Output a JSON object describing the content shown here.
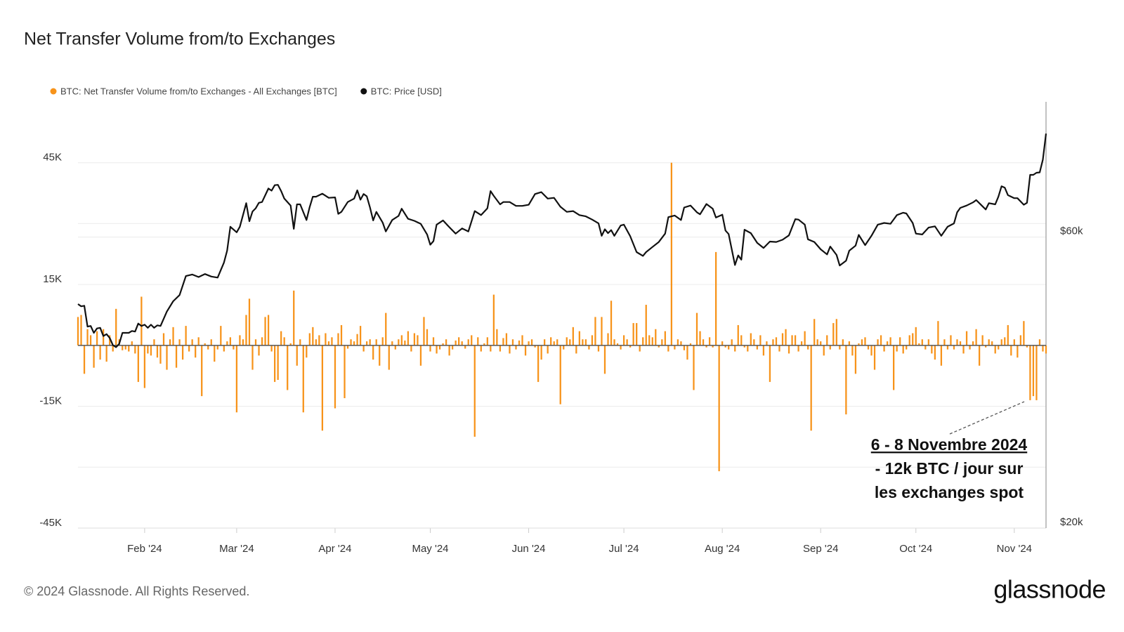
{
  "chart_data": {
    "type": "bar_line",
    "title": "Net Transfer Volume from/to Exchanges",
    "footer": "© 2024 Glassnode. All Rights Reserved.",
    "logo": "glassnode",
    "annotation": [
      "6 - 8 Novembre 2024",
      "- 12k BTC / jour sur",
      "les exchanges spot"
    ],
    "xlim": [
      0,
      305
    ],
    "xticks": [
      {
        "value": 21,
        "label": "Feb '24"
      },
      {
        "value": 50,
        "label": "Mar '24"
      },
      {
        "value": 81,
        "label": "Apr '24"
      },
      {
        "value": 111,
        "label": "May '24"
      },
      {
        "value": 142,
        "label": "Jun '24"
      },
      {
        "value": 172,
        "label": "Jul '24"
      },
      {
        "value": 203,
        "label": "Aug '24"
      },
      {
        "value": 234,
        "label": "Sep '24"
      },
      {
        "value": 264,
        "label": "Oct '24"
      },
      {
        "value": 295,
        "label": "Nov '24"
      }
    ],
    "ylim": [
      -45000,
      60000
    ],
    "yticks": [
      {
        "value": 45000,
        "label": "45K"
      },
      {
        "value": 15000,
        "label": "15K"
      },
      {
        "value": -15000,
        "label": "-15K"
      },
      {
        "value": -45000,
        "label": "-45K"
      }
    ],
    "minor_yticks": [
      30000,
      0,
      -30000
    ],
    "y2lim": [
      20000,
      100000
    ],
    "y2ticks": [
      {
        "value": 60000,
        "label": "$60k"
      },
      {
        "value": 20000,
        "label": "$20k"
      }
    ],
    "y2_log": true,
    "grid": true,
    "legend": "top-left",
    "x": [
      0,
      1,
      2,
      3,
      4,
      5,
      6,
      7,
      8,
      9,
      10,
      11,
      12,
      13,
      14,
      15,
      16,
      17,
      18,
      19,
      20,
      21,
      22,
      23,
      24,
      25,
      26,
      27,
      28,
      29,
      30,
      31,
      32,
      33,
      34,
      35,
      36,
      37,
      38,
      39,
      40,
      41,
      42,
      43,
      44,
      45,
      46,
      47,
      48,
      49,
      50,
      51,
      52,
      53,
      54,
      55,
      56,
      57,
      58,
      59,
      60,
      61,
      62,
      63,
      64,
      65,
      66,
      67,
      68,
      69,
      70,
      71,
      72,
      73,
      74,
      75,
      76,
      77,
      78,
      79,
      80,
      81,
      82,
      83,
      84,
      85,
      86,
      87,
      88,
      89,
      90,
      91,
      92,
      93,
      94,
      95,
      96,
      97,
      98,
      99,
      100,
      101,
      102,
      103,
      104,
      105,
      106,
      107,
      108,
      109,
      110,
      111,
      112,
      113,
      114,
      115,
      116,
      117,
      118,
      119,
      120,
      121,
      122,
      123,
      124,
      125,
      126,
      127,
      128,
      129,
      130,
      131,
      132,
      133,
      134,
      135,
      136,
      137,
      138,
      139,
      140,
      141,
      142,
      143,
      144,
      145,
      146,
      147,
      148,
      149,
      150,
      151,
      152,
      153,
      154,
      155,
      156,
      157,
      158,
      159,
      160,
      161,
      162,
      163,
      164,
      165,
      166,
      167,
      168,
      169,
      170,
      171,
      172,
      173,
      174,
      175,
      176,
      177,
      178,
      179,
      180,
      181,
      182,
      183,
      184,
      185,
      186,
      187,
      188,
      189,
      190,
      191,
      192,
      193,
      194,
      195,
      196,
      197,
      198,
      199,
      200,
      201,
      202,
      203,
      204,
      205,
      206,
      207,
      208,
      209,
      210,
      211,
      212,
      213,
      214,
      215,
      216,
      217,
      218,
      219,
      220,
      221,
      222,
      223,
      224,
      225,
      226,
      227,
      228,
      229,
      230,
      231,
      232,
      233,
      234,
      235,
      236,
      237,
      238,
      239,
      240,
      241,
      242,
      243,
      244,
      245,
      246,
      247,
      248,
      249,
      250,
      251,
      252,
      253,
      254,
      255,
      256,
      257,
      258,
      259,
      260,
      261,
      262,
      263,
      264,
      265,
      266,
      267,
      268,
      269,
      270,
      271,
      272,
      273,
      274,
      275,
      276,
      277,
      278,
      279,
      280,
      281,
      282,
      283,
      284,
      285,
      286,
      287,
      288,
      289,
      290,
      291,
      292,
      293,
      294,
      295,
      296,
      297,
      298,
      299,
      300,
      301,
      302,
      303,
      304,
      305
    ],
    "series": [
      {
        "name": "BTC: Net Transfer Volume from/to Exchanges - All Exchanges [BTC]",
        "color": "#f7931a",
        "type": "bar",
        "values": [
          7000,
          7500,
          -7000,
          4000,
          2500,
          -5500,
          3500,
          -3500,
          4000,
          -4000,
          2500,
          -1500,
          9000,
          1500,
          -1200,
          -1000,
          -1500,
          1000,
          -2000,
          -9000,
          12000,
          -10500,
          -2000,
          -2500,
          1500,
          -3000,
          -4500,
          3000,
          -6000,
          1500,
          4500,
          -5500,
          1500,
          -3500,
          4800,
          -1500,
          1500,
          -3000,
          2000,
          -12500,
          500,
          -1000,
          1500,
          -4000,
          -1000,
          4800,
          -1500,
          1000,
          2000,
          -1000,
          -16500,
          2500,
          1500,
          7500,
          11500,
          -6000,
          1500,
          -2500,
          2000,
          7000,
          7500,
          -1500,
          -9000,
          -8500,
          3500,
          2000,
          -11000,
          500,
          13500,
          -5000,
          1500,
          -16500,
          -3000,
          3000,
          4500,
          1500,
          2500,
          -21000,
          3000,
          1000,
          2000,
          -15500,
          3000,
          5000,
          -13000,
          -800,
          1500,
          1000,
          2800,
          4800,
          -1500,
          1000,
          1500,
          -3500,
          1500,
          -5000,
          2000,
          8000,
          -6000,
          1000,
          -1000,
          1500,
          2500,
          1200,
          3500,
          -1500,
          3000,
          2500,
          -5000,
          7000,
          4000,
          -1500,
          2000,
          -2000,
          -1000,
          500,
          1500,
          -2500,
          -1000,
          1200,
          2000,
          1000,
          -800,
          1500,
          2500,
          -22500,
          2000,
          -1500,
          500,
          2000,
          -1500,
          12500,
          4000,
          -1500,
          1800,
          3000,
          -2000,
          1500,
          -1000,
          1200,
          2500,
          -2500,
          1000,
          1500,
          -500,
          -9000,
          -3500,
          1500,
          -2000,
          2000,
          1000,
          1500,
          -14500,
          -1000,
          2000,
          1500,
          4500,
          -2000,
          3500,
          1500,
          1500,
          -1000,
          2500,
          7000,
          -1500,
          7000,
          -7000,
          3000,
          11000,
          1500,
          500,
          -1000,
          2500,
          1500,
          -500,
          5500,
          5500,
          -1500,
          2000,
          10000,
          2500,
          2000,
          4000,
          -500,
          1500,
          3500,
          -1500,
          45000,
          -1000,
          1500,
          1000,
          -1200,
          -3500,
          500,
          -11000,
          8000,
          3500,
          1500,
          -500,
          2000,
          -500,
          23000,
          -31000,
          1000,
          -500,
          -1000,
          1500,
          -1500,
          5000,
          2500,
          -500,
          -1500,
          3000,
          1500,
          -1000,
          2500,
          -2500,
          1000,
          -9000,
          1500,
          2000,
          -1500,
          3000,
          4000,
          -2000,
          2500,
          2500,
          -1500,
          1000,
          3500,
          -1000,
          -21000,
          6500,
          1500,
          1000,
          -2500,
          2500,
          -1000,
          5500,
          6500,
          -1000,
          1500,
          -17000,
          1000,
          -2500,
          -7000,
          500,
          1500,
          2000,
          -1000,
          -2500,
          -6000,
          1500,
          2500,
          -1500,
          1000,
          2000,
          -11000,
          -1500,
          2000,
          -2000,
          -1000,
          2500,
          3000,
          4500,
          500,
          1500,
          -1000,
          1500,
          -2000,
          -3500,
          6000,
          -5000,
          1500,
          -1000,
          2500,
          -1000,
          1500,
          1000,
          -2000,
          3500,
          -1000,
          1000,
          4000,
          -5000,
          2500,
          -500,
          1500,
          1000,
          -2000,
          -1000,
          1500,
          2000,
          5000,
          -2500,
          1500,
          -3000,
          2500,
          6000,
          -500,
          -13500,
          -12500,
          -13500,
          1500,
          -1500,
          -2000
        ]
      },
      {
        "name": "BTC: Price [USD]",
        "color": "#111111",
        "type": "line",
        "axis": "y2",
        "x": [
          0,
          1,
          2,
          3,
          4,
          5,
          6,
          7,
          8,
          9,
          10,
          11,
          12,
          13,
          14,
          15,
          16,
          17,
          18,
          19,
          20,
          21,
          22,
          23,
          24,
          25,
          26,
          28,
          30,
          32,
          34,
          36,
          38,
          40,
          42,
          44,
          46,
          47,
          48,
          50,
          51,
          53,
          54,
          55,
          56,
          57,
          58,
          60,
          61,
          62,
          63,
          64,
          65,
          67,
          68,
          69,
          70,
          72,
          73,
          74,
          75,
          77,
          79,
          81,
          82,
          83,
          85,
          87,
          88,
          89,
          90,
          91,
          92,
          93,
          94,
          96,
          97,
          99,
          101,
          102,
          104,
          106,
          108,
          110,
          111,
          112,
          113,
          115,
          117,
          119,
          121,
          123,
          125,
          127,
          129,
          130,
          131,
          133,
          134,
          136,
          138,
          140,
          142,
          144,
          146,
          148,
          150,
          152,
          154,
          156,
          158,
          160,
          162,
          164,
          165,
          166,
          167,
          168,
          169,
          171,
          172,
          174,
          176,
          178,
          179,
          181,
          183,
          185,
          186,
          188,
          190,
          191,
          193,
          195,
          196,
          198,
          200,
          201,
          203,
          204,
          205,
          207,
          208,
          209,
          210,
          212,
          214,
          216,
          218,
          220,
          222,
          224,
          226,
          227,
          229,
          230,
          232,
          234,
          236,
          237,
          239,
          240,
          242,
          243,
          245,
          246,
          248,
          250,
          252,
          254,
          256,
          258,
          260,
          261,
          263,
          264,
          266,
          268,
          270,
          272,
          274,
          276,
          277,
          278,
          280,
          282,
          283,
          285,
          286,
          287,
          289,
          290,
          291,
          292,
          293,
          295,
          296,
          298,
          299,
          300,
          301,
          302,
          303,
          304,
          305
        ],
        "values": [
          46600,
          46200,
          46300,
          42800,
          42900,
          41800,
          42500,
          42600,
          41300,
          41600,
          41000,
          39900,
          39600,
          40100,
          41800,
          41800,
          41800,
          42100,
          42000,
          43300,
          42900,
          43100,
          42600,
          43100,
          42600,
          43000,
          42900,
          45300,
          47100,
          48200,
          51800,
          52100,
          51600,
          52200,
          51700,
          51500,
          54500,
          57000,
          62400,
          61100,
          62400,
          68200,
          63700,
          66100,
          66900,
          68300,
          68500,
          72100,
          71500,
          73000,
          73100,
          71400,
          69400,
          67600,
          61900,
          67900,
          67900,
          64000,
          67200,
          69900,
          69900,
          70700,
          69600,
          69700,
          65500,
          66000,
          68500,
          69400,
          71600,
          69100,
          70600,
          70000,
          67100,
          63900,
          66000,
          63400,
          61300,
          64000,
          65000,
          66800,
          64300,
          63800,
          63100,
          60600,
          58300,
          59100,
          62900,
          63900,
          62300,
          60800,
          62000,
          61300,
          66200,
          65200,
          66900,
          71400,
          70100,
          67900,
          68500,
          68500,
          67500,
          67500,
          67800,
          70600,
          71100,
          69400,
          69600,
          67300,
          66000,
          66200,
          65200,
          64900,
          64100,
          63200,
          60300,
          61800,
          60900,
          61600,
          60300,
          62700,
          62900,
          60200,
          56700,
          55900,
          56700,
          57800,
          58900,
          60800,
          64700,
          65100,
          64000,
          67100,
          67600,
          65900,
          65400,
          68000,
          66800,
          64600,
          65300,
          61500,
          60700,
          54000,
          56000,
          55100,
          61700,
          60900,
          58700,
          57600,
          59000,
          58900,
          59400,
          60400,
          64200,
          64100,
          62900,
          59500,
          58900,
          57300,
          56200,
          57900,
          56100,
          53900,
          54900,
          57000,
          58100,
          60500,
          58200,
          60300,
          62900,
          63300,
          63100,
          65200,
          65800,
          65600,
          63300,
          60800,
          60600,
          62200,
          62500,
          60300,
          62400,
          63200,
          65900,
          67000,
          67600,
          68400,
          69000,
          67400,
          66600,
          68200,
          67900,
          69900,
          72700,
          72300,
          70300,
          69500,
          69500,
          67800,
          68300,
          75900,
          75900,
          76500,
          76600,
          80400,
          88700
        ]
      }
    ]
  }
}
